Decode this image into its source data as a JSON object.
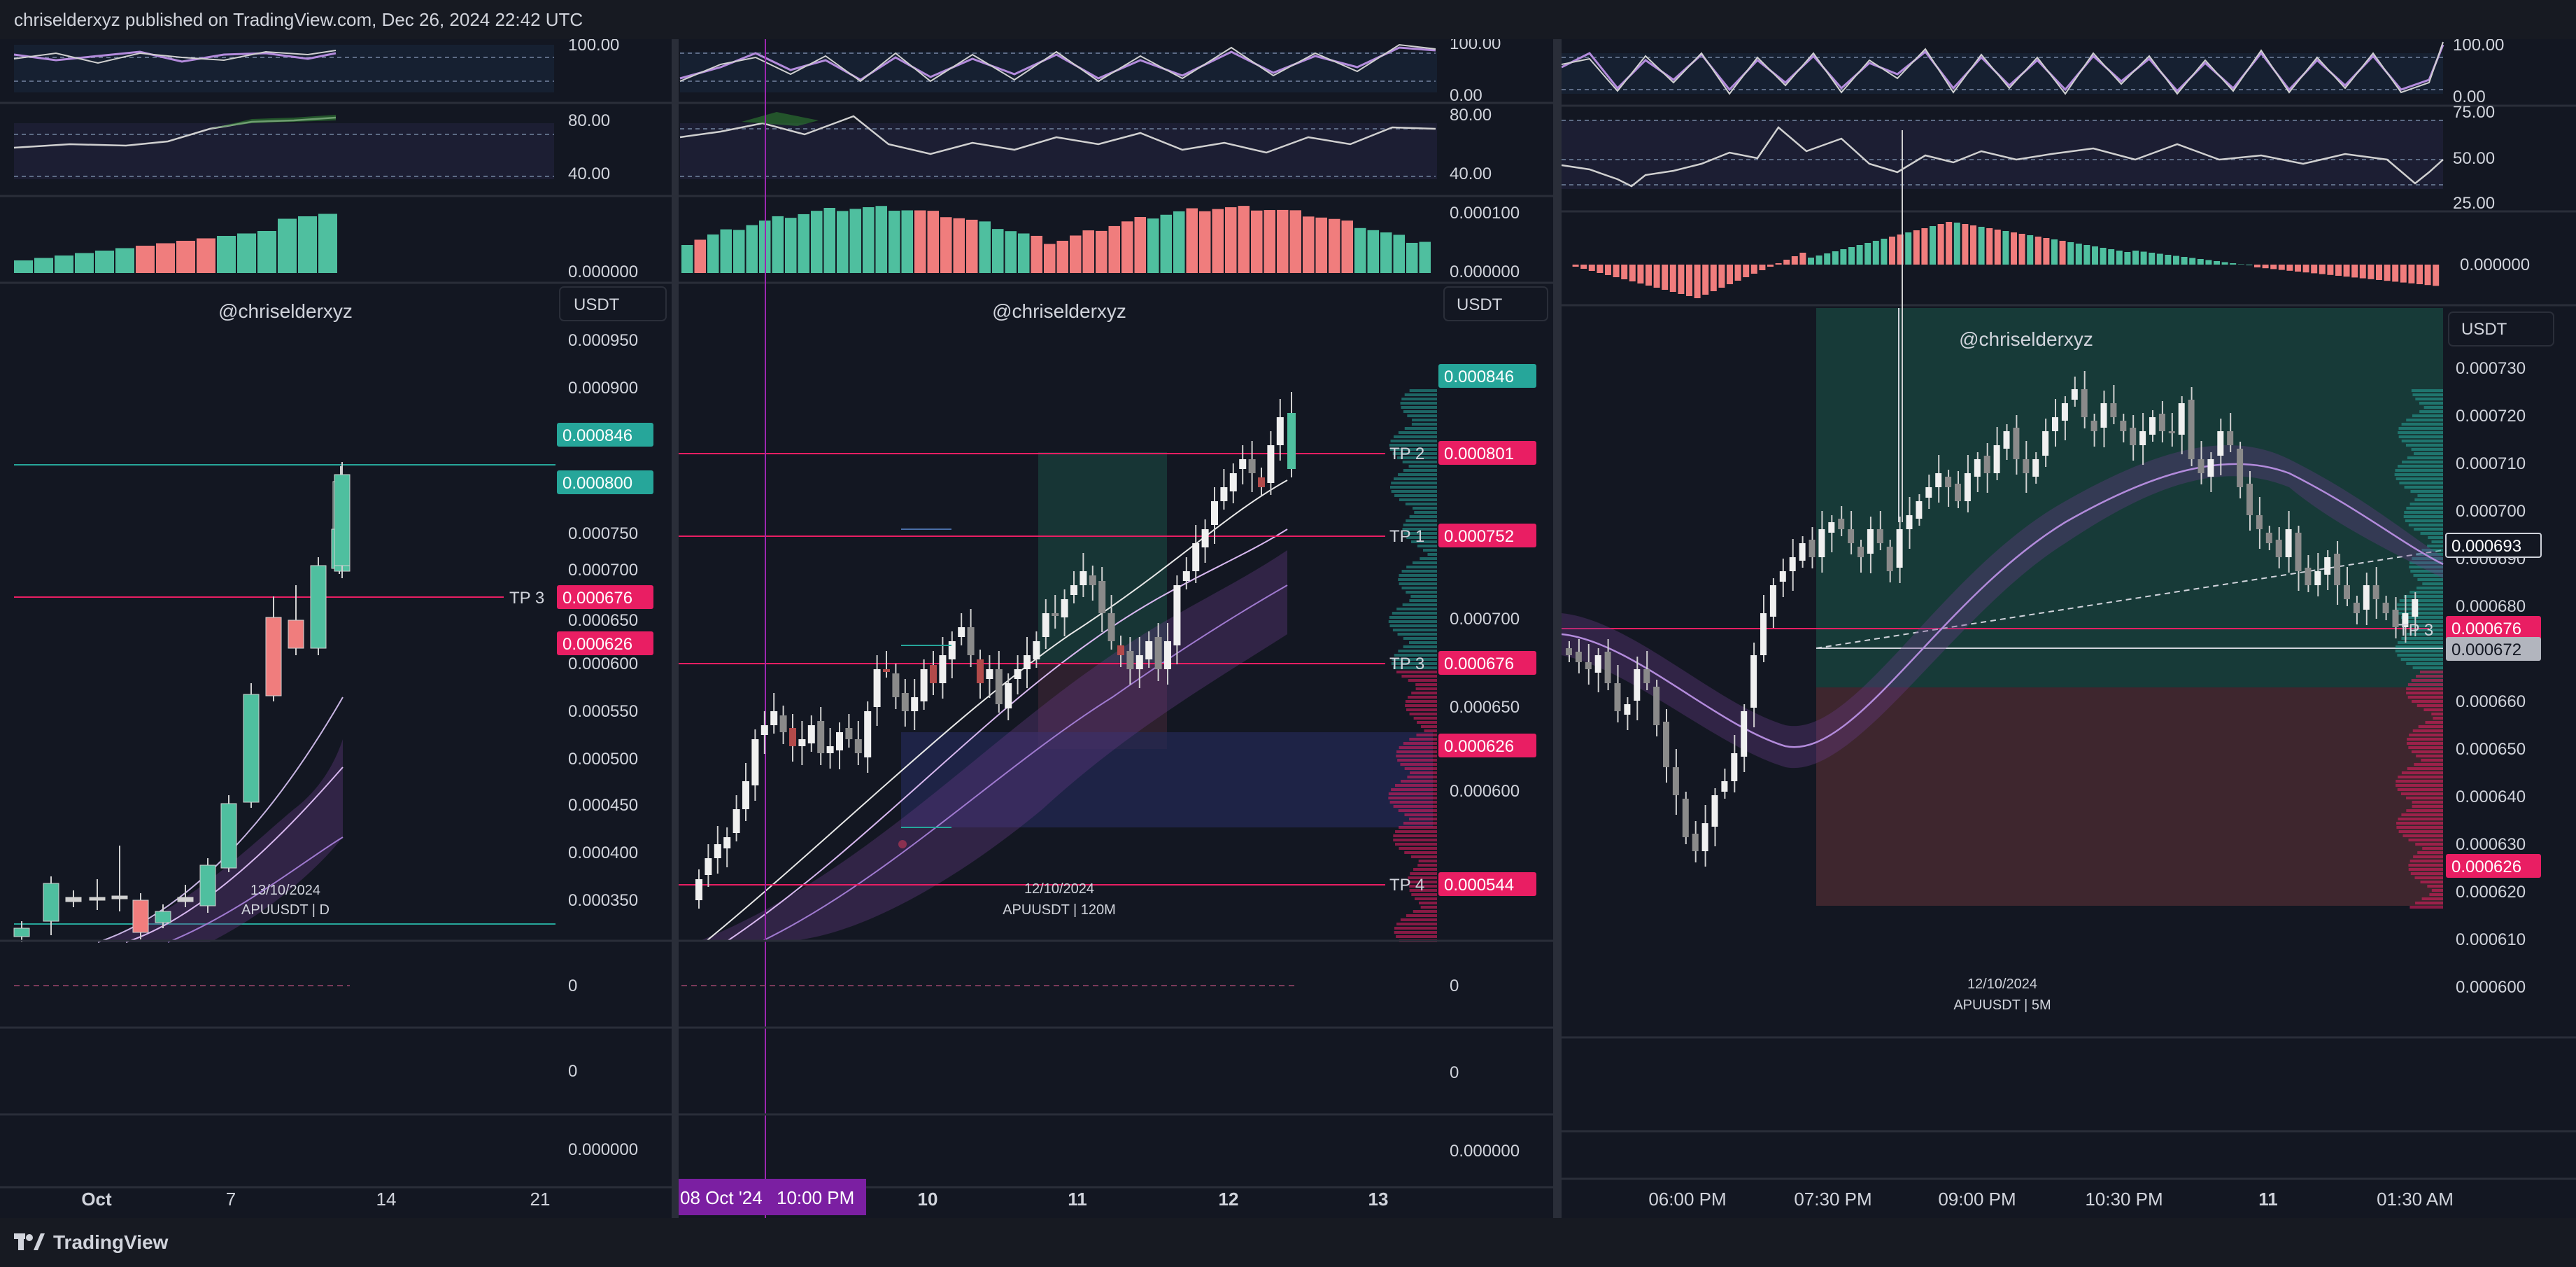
{
  "header": {
    "publisher_line": "chriselderxyz published on TradingView.com, Dec 26, 2024 22:42 UTC"
  },
  "footer": {
    "brand": "TradingView"
  },
  "colors": {
    "bull": "#4fbf9f",
    "bear": "#f07d7d",
    "tp_line": "#e91e63",
    "green_label": "#26a69a",
    "red_label": "#e91e63",
    "purple": "#9c27b0",
    "background": "#131722"
  },
  "panels": [
    {
      "watermark": "@chriselderxyz",
      "currency_button": "USDT",
      "rsi_scale": [
        "100.00"
      ],
      "stoch_scale": [
        "80.00",
        "40.00"
      ],
      "hist_scale": [
        "0.000000"
      ],
      "price_scale": [
        "0.000950",
        "0.000900",
        "0.000750",
        "0.000700",
        "0.000650",
        "0.000600",
        "0.000550",
        "0.000500",
        "0.000450",
        "0.000400",
        "0.000350"
      ],
      "price_badges": [
        {
          "value": "0.000846",
          "type": "green"
        },
        {
          "value": "0.000800",
          "type": "green"
        },
        {
          "value": "0.000676",
          "type": "red",
          "label": "TP 3"
        },
        {
          "value": "0.000626",
          "type": "red"
        }
      ],
      "chart_caption_date": "13/10/2024",
      "chart_caption_symbol": "APUUSDT | D",
      "lower_scales": [
        "0",
        "0",
        "0.000000"
      ],
      "time_axis": [
        "Oct",
        "7",
        "14",
        "21"
      ]
    },
    {
      "watermark": "@chriselderxyz",
      "currency_button": "USDT",
      "rsi_scale": [
        "100.00",
        "0.00"
      ],
      "stoch_scale": [
        "80.00",
        "40.00"
      ],
      "hist_scale": [
        "0.000100",
        "0.000000"
      ],
      "price_scale": [
        "0.000700",
        "0.000650",
        "0.000600"
      ],
      "price_badges": [
        {
          "value": "0.000846",
          "type": "green"
        },
        {
          "value": "0.000801",
          "type": "red",
          "label": "TP 2"
        },
        {
          "value": "0.000752",
          "type": "red",
          "label": "TP 1"
        },
        {
          "value": "0.000676",
          "type": "red",
          "label": "TP 3"
        },
        {
          "value": "0.000626",
          "type": "red"
        },
        {
          "value": "0.000544",
          "type": "red",
          "label": "TP 4"
        }
      ],
      "chart_caption_date": "12/10/2024",
      "chart_caption_symbol": "APUUSDT | 120M",
      "lower_scales": [
        "0",
        "0",
        "0.000000"
      ],
      "time_axis": [
        "10",
        "11",
        "12",
        "13"
      ],
      "crosshair_time": "08 Oct '24",
      "crosshair_time2": "10:00 PM"
    },
    {
      "watermark": "@chriselderxyz",
      "currency_button": "USDT",
      "rsi_scale": [
        "100.00",
        "0.00"
      ],
      "stoch_scale": [
        "75.00",
        "50.00",
        "25.00"
      ],
      "hist_scale": [
        "0.000000"
      ],
      "price_scale": [
        "0.000730",
        "0.000720",
        "0.000710",
        "0.000700",
        "0.000690",
        "0.000680",
        "0.000660",
        "0.000650",
        "0.000640",
        "0.000630",
        "0.000620",
        "0.000610",
        "0.000600"
      ],
      "price_badges": [
        {
          "value": "0.000693",
          "type": "outline"
        },
        {
          "value": "0.000676",
          "type": "red",
          "label": "TP 3"
        },
        {
          "value": "0.000672",
          "type": "grey"
        },
        {
          "value": "0.000626",
          "type": "red"
        }
      ],
      "chart_caption_date": "12/10/2024",
      "chart_caption_symbol": "APUUSDT | 5M",
      "time_axis": [
        "06:00 PM",
        "07:30 PM",
        "09:00 PM",
        "10:30 PM",
        "11",
        "01:30 AM"
      ]
    }
  ]
}
